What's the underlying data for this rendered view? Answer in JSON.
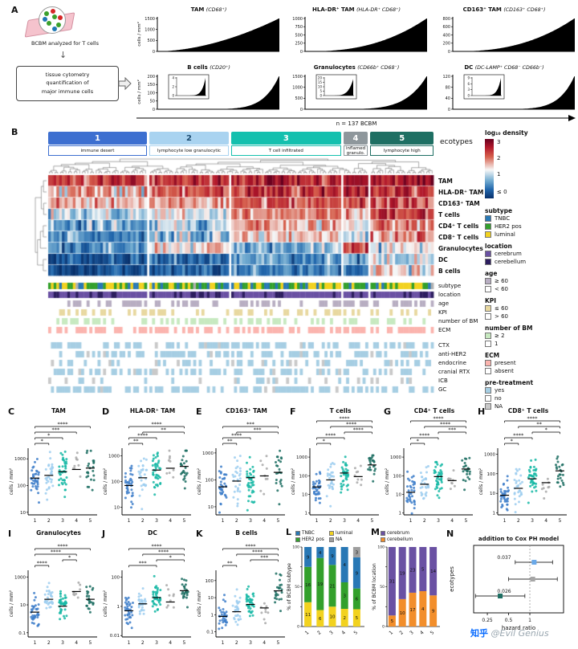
{
  "figure": {
    "watermark_brand": "知乎",
    "watermark_user": "@Evil Genius"
  },
  "panel_a": {
    "label": "A",
    "intro_text": "BCBM analyzed for T cells",
    "box_lines": [
      "tissue cytometry",
      "quantification of",
      "major immune cells"
    ],
    "n_label": "n = 137 BCBM"
  },
  "panel_b": {
    "label": "B",
    "ecotypes_label": "ecotypes",
    "legend_density_title": "log₁₀ density",
    "legend_density_ticks": [
      "3",
      "2",
      "1",
      "≤ 0"
    ]
  },
  "chart_data": {
    "ranked_bar_charts": {
      "type": "bar",
      "n": 137,
      "ylabel": "cells / mm²",
      "charts": [
        {
          "title": "TAM",
          "marker": "(CD68⁺)",
          "ymax": 1500,
          "yticks": [
            0,
            500,
            1000,
            1500
          ],
          "skew": 1.8
        },
        {
          "title": "HLA-DR⁺ TAM",
          "marker": "(HLA-DR⁺ CD68⁺)",
          "ymax": 1000,
          "yticks": [
            0,
            250,
            500,
            750,
            1000
          ],
          "skew": 2.5
        },
        {
          "title": "CD163⁺ TAM",
          "marker": "(CD163⁺ CD68⁺)",
          "ymax": 800,
          "yticks": [
            0,
            200,
            400,
            600,
            800
          ],
          "skew": 2.5
        },
        {
          "title": "B cells",
          "marker": "(CD20⁺)",
          "ymax": 200,
          "yticks": [
            0,
            50,
            100,
            150,
            200
          ],
          "skew": 8,
          "inset_ticks": [
            0,
            2,
            4
          ],
          "inset_max": 4
        },
        {
          "title": "Granulocytes",
          "marker": "(CD66b⁺ CD68⁻)",
          "ymax": 1500,
          "yticks": [
            0,
            500,
            1000,
            1500
          ],
          "skew": 6,
          "inset_ticks": [
            0,
            5,
            10,
            15,
            20
          ],
          "inset_max": 20
        },
        {
          "title": "DC",
          "marker": "(DC-LAMP⁺ CD68⁻ CD66b⁻)",
          "ymax": 120,
          "yticks": [
            0,
            40,
            80,
            120
          ],
          "skew": 8,
          "inset_ticks": [
            0,
            3,
            6,
            9
          ],
          "inset_max": 9
        }
      ]
    },
    "heatmap": {
      "type": "heatmap",
      "ecotypes": [
        {
          "num": "1",
          "name": "immune desert",
          "color": "#3d6fd0",
          "size": 36
        },
        {
          "num": "2",
          "name": "lymphocyte low granulocytic",
          "color": "#a9d3f0",
          "size": 29
        },
        {
          "num": "3",
          "name": "T cell infiltrated",
          "color": "#14c0ae",
          "size": 40
        },
        {
          "num": "4",
          "name": "inflamed granulo.",
          "color": "#8e979c",
          "size": 9
        },
        {
          "num": "5",
          "name": "lymphocyte high",
          "color": "#1e6f63",
          "size": 23
        }
      ],
      "rows": [
        "TAM",
        "HLA-DR⁺ TAM",
        "CD163⁺ TAM",
        "T cells",
        "CD4⁺ T cells",
        "CD8⁺ T cells",
        "Granulocytes",
        "DC",
        "B cells"
      ],
      "profiles": [
        [
          2.3,
          2.3,
          2.5,
          2.5,
          2.6
        ],
        [
          1.6,
          1.9,
          2.2,
          2.2,
          2.4
        ],
        [
          1.4,
          1.6,
          1.9,
          2.0,
          2.1
        ],
        [
          0.8,
          1.1,
          1.8,
          1.5,
          2.2
        ],
        [
          0.5,
          0.8,
          1.5,
          1.2,
          1.9
        ],
        [
          0.3,
          0.6,
          1.3,
          1.0,
          1.7
        ],
        [
          0.2,
          1.3,
          0.6,
          2.0,
          1.1
        ],
        [
          -0.3,
          0.0,
          0.4,
          0.5,
          0.9
        ],
        [
          -0.4,
          -0.2,
          0.3,
          0.3,
          1.3
        ]
      ],
      "annotations": [
        {
          "label": "subtype",
          "colors": [
            "#2878b5",
            "#33a02c",
            "#f2d21f",
            "#b0b0b0"
          ],
          "probs": [
            0.3,
            0.35,
            0.3,
            0.05
          ]
        },
        {
          "label": "location",
          "colors": [
            "#6a51a3",
            "#2d1e5f"
          ],
          "probs": [
            0.72,
            0.28
          ]
        },
        {
          "label": "age",
          "colors": [
            "#b8aec2",
            "#ffffff"
          ],
          "probs": [
            0.5,
            0.5
          ]
        },
        {
          "label": "KPI",
          "colors": [
            "#e8d8a0",
            "#ffffff"
          ],
          "probs": [
            0.35,
            0.65
          ]
        },
        {
          "label": "number of BM",
          "colors": [
            "#c7e9c0",
            "#ffffff"
          ],
          "probs": [
            0.45,
            0.55
          ]
        },
        {
          "label": "ECM",
          "colors": [
            "#fbb4ae",
            "#ffffff"
          ],
          "probs": [
            0.55,
            0.45
          ]
        }
      ],
      "treatments": [
        {
          "label": "CTX",
          "probs": [
            0.55,
            0.4,
            0.05
          ]
        },
        {
          "label": "anti-HER2",
          "probs": [
            0.45,
            0.5,
            0.05
          ]
        },
        {
          "label": "endocrine",
          "probs": [
            0.3,
            0.65,
            0.05
          ]
        },
        {
          "label": "cranial RTX",
          "probs": [
            0.4,
            0.55,
            0.05
          ]
        },
        {
          "label": "ICB",
          "probs": [
            0.12,
            0.83,
            0.05
          ]
        },
        {
          "label": "GC",
          "probs": [
            0.5,
            0.45,
            0.05
          ]
        }
      ],
      "treatment_colors": [
        "#a6cee3",
        "#ffffff",
        "#c9c9c9"
      ],
      "legend_groups": [
        {
          "title": "subtype",
          "items": [
            {
              "label": "TNBC",
              "color": "#2878b5"
            },
            {
              "label": "HER2 pos",
              "color": "#33a02c"
            },
            {
              "label": "luminal",
              "color": "#f2d21f"
            }
          ]
        },
        {
          "title": "location",
          "items": [
            {
              "label": "cerebrum",
              "color": "#6a51a3"
            },
            {
              "label": "cerebellum",
              "color": "#2d1e5f"
            }
          ]
        },
        {
          "title": "age",
          "items": [
            {
              "label": "≥ 60",
              "color": "#b8aec2"
            },
            {
              "label": "< 60",
              "color": "#ffffff"
            }
          ]
        },
        {
          "title": "KPI",
          "items": [
            {
              "label": "≤ 60",
              "color": "#e8d8a0"
            },
            {
              "label": "> 60",
              "color": "#ffffff"
            }
          ]
        },
        {
          "title": "number of BM",
          "items": [
            {
              "label": "≥ 2",
              "color": "#c7e9c0"
            },
            {
              "label": "1",
              "color": "#ffffff"
            }
          ]
        },
        {
          "title": "ECM",
          "items": [
            {
              "label": "present",
              "color": "#fbb4ae"
            },
            {
              "label": "absent",
              "color": "#ffffff"
            }
          ]
        },
        {
          "title": "pre-treatment",
          "items": [
            {
              "label": "yes",
              "color": "#a6cee3"
            },
            {
              "label": "no",
              "color": "#ffffff"
            },
            {
              "label": "NA",
              "color": "#c9c9c9"
            }
          ]
        }
      ]
    },
    "jitter": {
      "type": "scatter",
      "ylabel": "cells / mm²",
      "group_colors": [
        "#3f7fca",
        "#9ecef0",
        "#17b8a6",
        "#a9a9a9",
        "#1d6f63"
      ],
      "group_labels": [
        "1",
        "2",
        "3",
        "4",
        "5"
      ],
      "panels": [
        {
          "label": "C",
          "title": "TAM",
          "ymin": 8,
          "ymax": 2500,
          "yticks": [
            10,
            100,
            1000
          ],
          "medians": [
            190,
            240,
            330,
            400,
            450
          ],
          "brackets": [
            [
              "1",
              "2",
              "*"
            ],
            [
              "1",
              "3",
              "*"
            ],
            [
              "1",
              "4",
              "***"
            ],
            [
              "1",
              "5",
              "****"
            ]
          ]
        },
        {
          "label": "D",
          "title": "HLA-DR⁺ TAM",
          "ymin": 5,
          "ymax": 2000,
          "yticks": [
            10,
            100,
            1000
          ],
          "medians": [
            70,
            140,
            280,
            330,
            390
          ],
          "brackets": [
            [
              "1",
              "2",
              "**"
            ],
            [
              "1",
              "3",
              "****"
            ],
            [
              "2",
              "5",
              "**"
            ],
            [
              "1",
              "5",
              "****"
            ]
          ]
        },
        {
          "label": "E",
          "title": "CD163⁺ TAM",
          "ymin": 5,
          "ymax": 1500,
          "yticks": [
            10,
            100,
            1000
          ],
          "medians": [
            55,
            90,
            120,
            140,
            190
          ],
          "brackets": [
            [
              "1",
              "2",
              "**"
            ],
            [
              "1",
              "3",
              "****"
            ],
            [
              "2",
              "5",
              "***"
            ],
            [
              "1",
              "5",
              "***"
            ]
          ]
        },
        {
          "label": "F",
          "title": "T cells",
          "ymin": 0.8,
          "ymax": 3000,
          "yticks": [
            1,
            10,
            100,
            1000
          ],
          "medians": [
            25,
            60,
            140,
            90,
            380
          ],
          "brackets": [
            [
              "1",
              "2",
              "*"
            ],
            [
              "1",
              "3",
              "****"
            ],
            [
              "3",
              "5",
              "****"
            ],
            [
              "2",
              "5",
              "****"
            ],
            [
              "1",
              "5",
              "****"
            ]
          ]
        },
        {
          "label": "G",
          "title": "CD4⁺ T cells",
          "ymin": 0.8,
          "ymax": 3000,
          "yticks": [
            1,
            10,
            100,
            1000
          ],
          "medians": [
            13,
            35,
            90,
            55,
            230
          ],
          "brackets": [
            [
              "1",
              "2",
              "*"
            ],
            [
              "1",
              "3",
              "****"
            ],
            [
              "3",
              "5",
              "***"
            ],
            [
              "2",
              "5",
              "****"
            ],
            [
              "1",
              "5",
              "****"
            ]
          ]
        },
        {
          "label": "H",
          "title": "CD8⁺ T cells",
          "ymin": 0.8,
          "ymax": 2000,
          "yticks": [
            1,
            10,
            100,
            1000
          ],
          "medians": [
            8,
            18,
            55,
            35,
            140
          ],
          "brackets": [
            [
              "1",
              "2",
              "*"
            ],
            [
              "1",
              "3",
              "****"
            ],
            [
              "3",
              "5",
              "*"
            ],
            [
              "2",
              "5",
              "**"
            ],
            [
              "1",
              "5",
              "****"
            ]
          ]
        },
        {
          "label": "I",
          "title": "Granulocytes",
          "ymin": 0.05,
          "ymax": 3000,
          "yticks": [
            0.1,
            10,
            1000
          ],
          "medians": [
            3,
            25,
            8,
            90,
            25
          ],
          "brackets": [
            [
              "1",
              "2",
              "****"
            ],
            [
              "3",
              "4",
              "*"
            ],
            [
              "1",
              "4",
              "****"
            ],
            [
              "1",
              "5",
              "****"
            ]
          ]
        },
        {
          "label": "J",
          "title": "DC",
          "ymin": 0.008,
          "ymax": 300,
          "yticks": [
            0.01,
            1,
            100
          ],
          "medians": [
            0.5,
            1.5,
            4,
            2,
            12
          ],
          "brackets": [
            [
              "1",
              "3",
              "***"
            ],
            [
              "3",
              "5",
              "*"
            ],
            [
              "2",
              "5",
              "****"
            ],
            [
              "1",
              "5",
              "****"
            ]
          ]
        },
        {
          "label": "K",
          "title": "B cells",
          "ymin": 0.05,
          "ymax": 400,
          "yticks": [
            0.1,
            1,
            10,
            100
          ],
          "medians": [
            0.8,
            1.5,
            4,
            2.5,
            25
          ],
          "brackets": [
            [
              "1",
              "2",
              "**"
            ],
            [
              "3",
              "5",
              "***"
            ],
            [
              "2",
              "5",
              "****"
            ],
            [
              "1",
              "5",
              "****"
            ]
          ]
        }
      ]
    },
    "stacked_bars": [
      {
        "label": "L",
        "ylabel": "% of BCBM subtype",
        "categories": [
          "1",
          "2",
          "3",
          "4",
          "5"
        ],
        "series": [
          {
            "name": "TNBC",
            "color": "#2878b5",
            "tc": "#fff",
            "values": [
              9,
              4,
              9,
              4,
              9
            ]
          },
          {
            "name": "HER2 pos",
            "color": "#33a02c",
            "tc": "#fff",
            "values": [
              16,
              19,
              21,
              3,
              6
            ]
          },
          {
            "name": "luminal",
            "color": "#f2d21f",
            "tc": "#333",
            "values": [
              11,
              6,
              10,
              2,
              5
            ]
          },
          {
            "name": "NA",
            "color": "#9e9e9e",
            "tc": "#fff",
            "values": [
              0,
              0,
              0,
              0,
              3
            ]
          }
        ],
        "stack_order": [
          2,
          1,
          0,
          3
        ],
        "legend_order": [
          0,
          2,
          1,
          3
        ]
      },
      {
        "label": "M",
        "ylabel": "% of BCBM location",
        "categories": [
          "1",
          "2",
          "3",
          "4",
          "5"
        ],
        "series": [
          {
            "name": "cerebrum",
            "color": "#6a51a3",
            "tc": "#fff",
            "values": [
              31,
              19,
              23,
              5,
              14
            ]
          },
          {
            "name": "cerebellum",
            "color": "#f28e2b",
            "tc": "#fff",
            "values": [
              5,
              10,
              17,
              4,
              9
            ]
          }
        ],
        "stack_order": [
          1,
          0
        ],
        "legend_order": [
          0,
          1
        ]
      }
    ],
    "forest": {
      "label": "N",
      "title": "addition to Cox PH model",
      "ylabel": "ecotypes",
      "xlabel": "hazard ratio",
      "xticks": [
        0.25,
        0.5,
        1
      ],
      "ref_line": 1,
      "points": [
        {
          "hr": 1.15,
          "lo": 0.62,
          "hi": 2.1,
          "color": "#6aa9e9",
          "p": "0.037"
        },
        {
          "hr": 1.1,
          "lo": 0.5,
          "hi": 2.45,
          "color": "#a6a6a6",
          "p": ""
        },
        {
          "hr": 0.38,
          "lo": 0.17,
          "hi": 0.85,
          "color": "#1e6f63",
          "p": "0.026"
        }
      ]
    }
  }
}
